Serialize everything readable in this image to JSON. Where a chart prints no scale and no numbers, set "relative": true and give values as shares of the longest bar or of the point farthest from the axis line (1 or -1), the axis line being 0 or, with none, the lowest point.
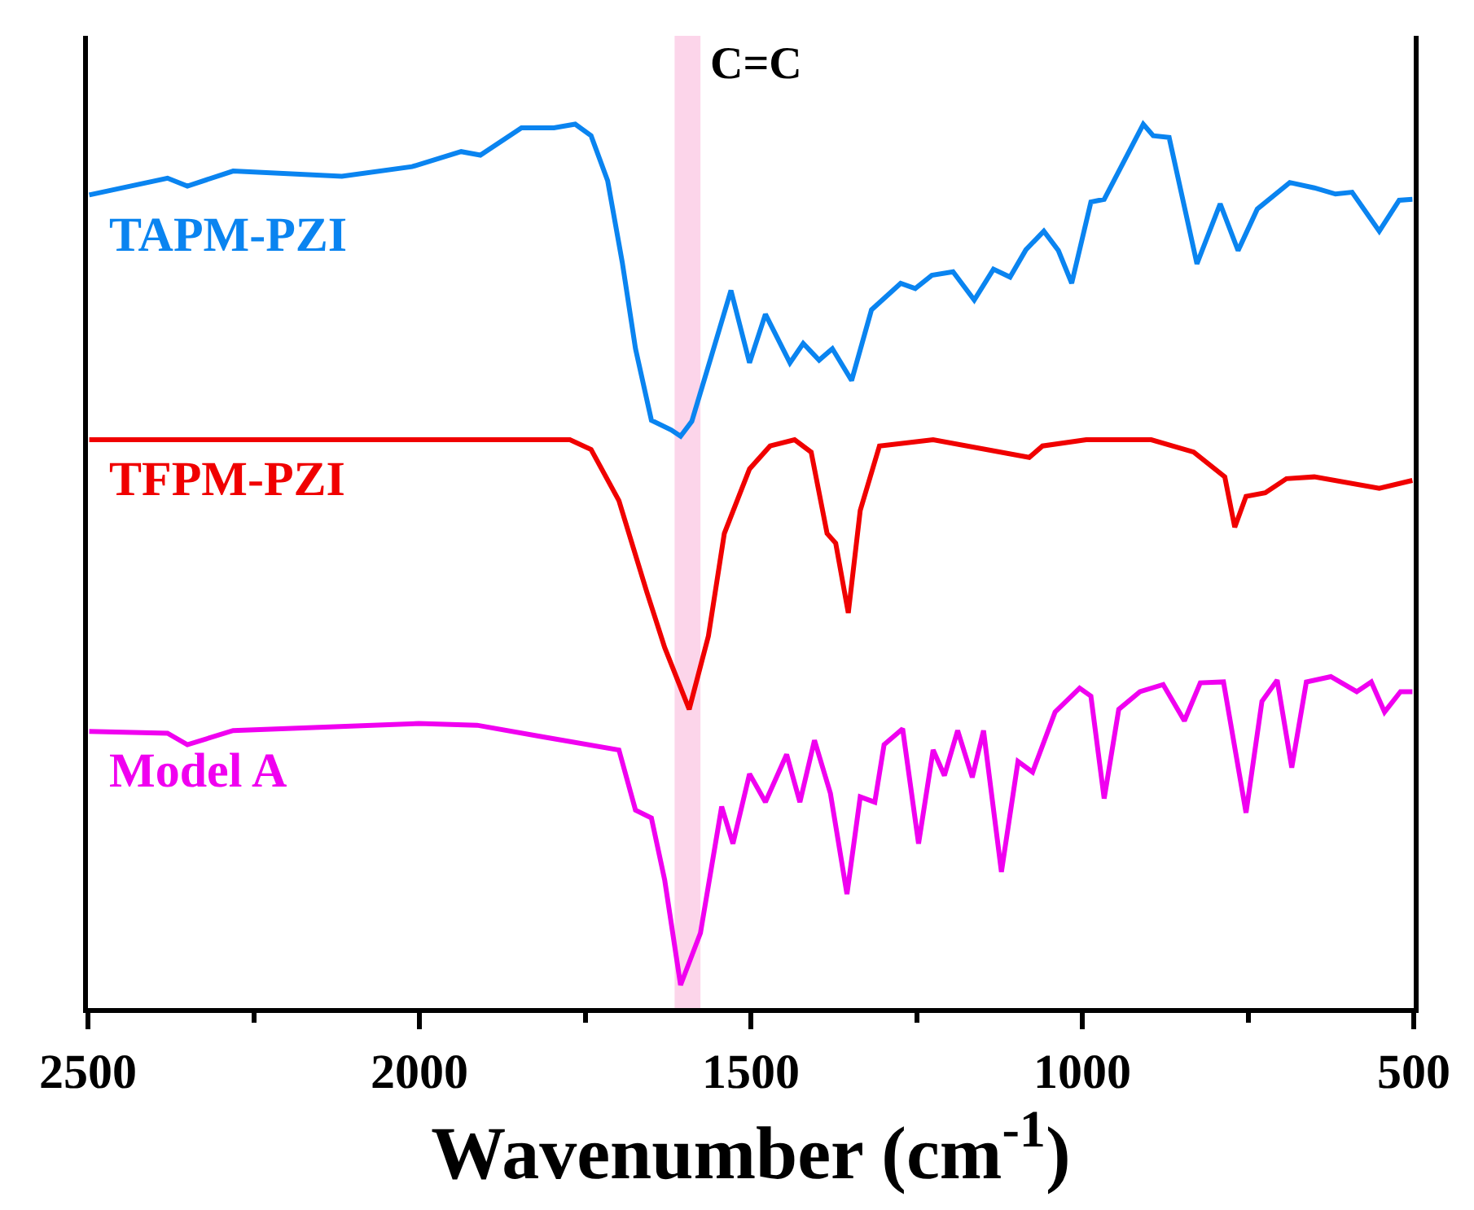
{
  "chart_data": {
    "type": "line",
    "relative": true,
    "xlabel": "Wavenumber (cm$^{-1}$)",
    "xlim": [
      2500,
      500
    ],
    "xticks": [
      2500,
      {
        "value": 2250,
        "label": null
      },
      2000,
      {
        "value": 1750,
        "label": null
      },
      1500,
      {
        "value": 1250,
        "label": null
      },
      1000,
      {
        "value": 750,
        "label": null
      },
      500
    ],
    "grid": false,
    "legend": false,
    "marker": "none",
    "line_style": "solid",
    "bands": [
      {
        "axis": "x",
        "from": 1615,
        "to": 1576,
        "label": "C=C",
        "color": "#fcd5ea"
      }
    ],
    "series": [
      {
        "name": "TAPM-PZI",
        "color": "#0a84f0",
        "x": [
          2498,
          2380,
          2350,
          2281,
          2117,
          2011,
          1937,
          1908,
          1846,
          1797,
          1765,
          1741,
          1716,
          1694,
          1674,
          1650,
          1620,
          1606,
          1589,
          1559,
          1530,
          1502,
          1478,
          1441,
          1421,
          1397,
          1377,
          1348,
          1318,
          1274,
          1252,
          1227,
          1195,
          1163,
          1134,
          1109,
          1085,
          1058,
          1036,
          1016,
          987,
          967,
          908,
          893,
          869,
          827,
          792,
          765,
          736,
          687,
          650,
          618,
          593,
          552,
          522,
          502
        ],
        "values": [
          0.92,
          0.939,
          0.93,
          0.947,
          0.941,
          0.952,
          0.969,
          0.965,
          0.996,
          0.996,
          1.0,
          0.987,
          0.936,
          0.844,
          0.746,
          0.665,
          0.654,
          0.647,
          0.664,
          0.739,
          0.812,
          0.73,
          0.785,
          0.73,
          0.752,
          0.733,
          0.746,
          0.71,
          0.79,
          0.82,
          0.814,
          0.829,
          0.833,
          0.801,
          0.836,
          0.827,
          0.858,
          0.879,
          0.857,
          0.82,
          0.912,
          0.915,
          1.0,
          0.987,
          0.985,
          0.842,
          0.91,
          0.857,
          0.904,
          0.934,
          0.928,
          0.921,
          0.923,
          0.879,
          0.914,
          0.915
        ]
      },
      {
        "name": "TFPM-PZI",
        "color": "#f00000",
        "x": [
          2498,
          1773,
          1741,
          1699,
          1657,
          1630,
          1593,
          1564,
          1540,
          1502,
          1471,
          1434,
          1409,
          1385,
          1372,
          1353,
          1335,
          1306,
          1225,
          1080,
          1060,
          994,
          896,
          832,
          785,
          770,
          753,
          724,
          692,
          650,
          552,
          502
        ],
        "values": [
          0.643,
          0.643,
          0.632,
          0.574,
          0.471,
          0.408,
          0.338,
          0.421,
          0.537,
          0.61,
          0.636,
          0.643,
          0.629,
          0.537,
          0.526,
          0.447,
          0.563,
          0.636,
          0.643,
          0.623,
          0.636,
          0.643,
          0.643,
          0.629,
          0.601,
          0.544,
          0.579,
          0.583,
          0.599,
          0.601,
          0.588,
          0.597
        ]
      },
      {
        "name": "Model A",
        "color": "#f000f0",
        "x": [
          2498,
          2380,
          2350,
          2281,
          2001,
          1913,
          1815,
          1699,
          1674,
          1650,
          1630,
          1606,
          1576,
          1544,
          1527,
          1502,
          1478,
          1446,
          1426,
          1404,
          1380,
          1355,
          1335,
          1313,
          1299,
          1271,
          1247,
          1225,
          1208,
          1188,
          1166,
          1149,
          1122,
          1097,
          1075,
          1041,
          1004,
          987,
          967,
          945,
          913,
          878,
          846,
          822,
          787,
          753,
          729,
          706,
          684,
          662,
          625,
          586,
          564,
          544,
          520,
          502
        ],
        "values": [
          0.313,
          0.311,
          0.298,
          0.314,
          0.322,
          0.32,
          0.307,
          0.292,
          0.224,
          0.215,
          0.145,
          0.026,
          0.085,
          0.228,
          0.186,
          0.265,
          0.233,
          0.287,
          0.233,
          0.303,
          0.243,
          0.129,
          0.239,
          0.233,
          0.298,
          0.316,
          0.186,
          0.292,
          0.263,
          0.314,
          0.261,
          0.314,
          0.154,
          0.279,
          0.267,
          0.335,
          0.362,
          0.353,
          0.237,
          0.338,
          0.358,
          0.366,
          0.325,
          0.368,
          0.369,
          0.221,
          0.347,
          0.371,
          0.272,
          0.369,
          0.375,
          0.358,
          0.369,
          0.335,
          0.358,
          0.358
        ]
      }
    ]
  }
}
